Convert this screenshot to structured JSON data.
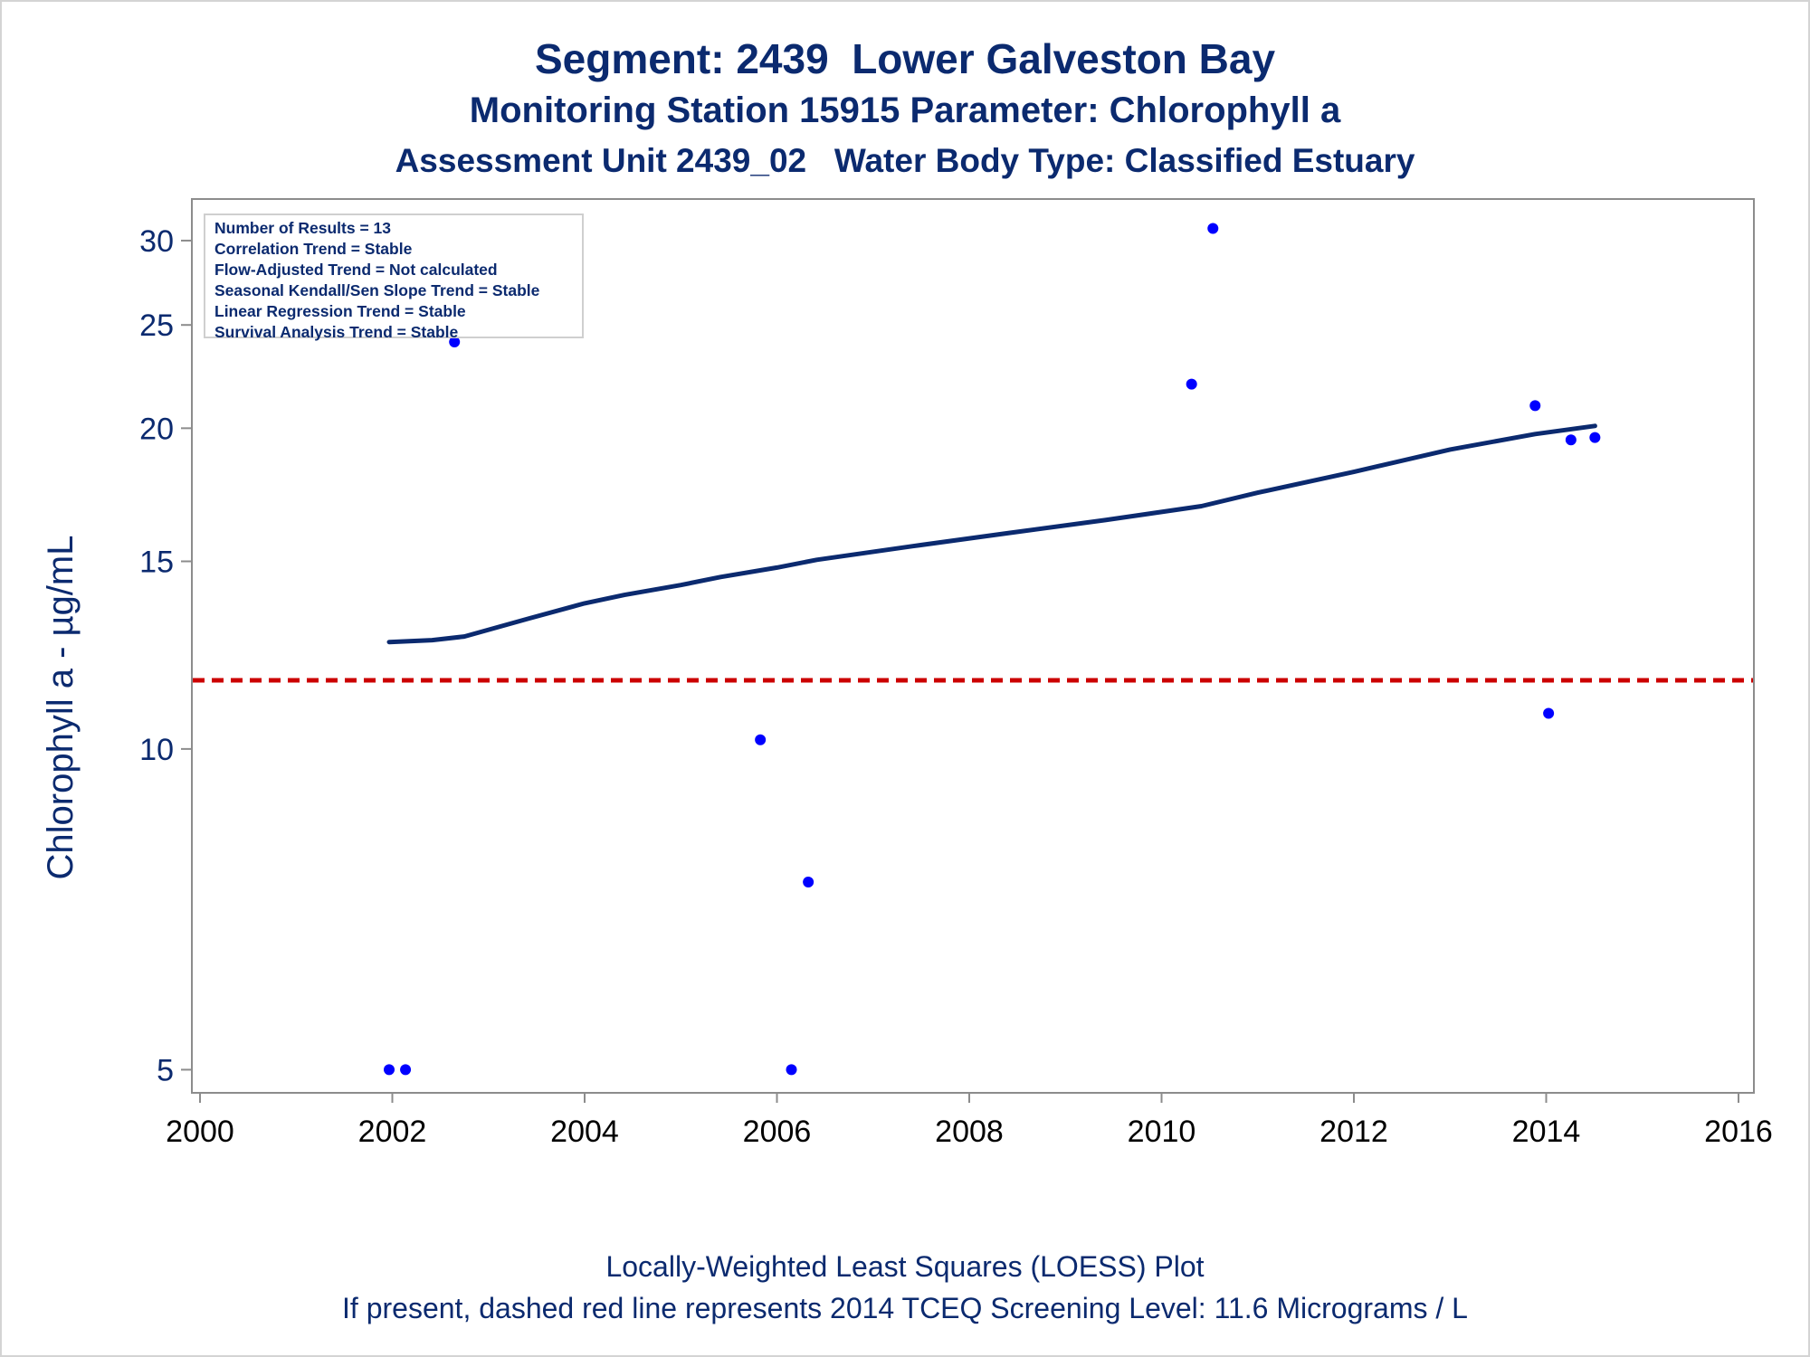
{
  "titles": {
    "line1": "Segment: 2439  Lower Galveston Bay",
    "line2": "Monitoring Station 15915 Parameter: Chlorophyll a",
    "line3": "Assessment Unit 2439_02   Water Body Type: Classified Estuary"
  },
  "footnotes": {
    "line1": "Locally-Weighted Least Squares (LOESS) Plot",
    "line2": "If present, dashed red line represents 2014 TCEQ Screening Level: 11.6 Micrograms / L"
  },
  "stats_box": {
    "lines": [
      "Number of Results = 13",
      "Correlation Trend = Stable",
      "Flow-Adjusted Trend = Not calculated",
      "Seasonal Kendall/Sen Slope Trend = Stable",
      "Linear Regression Trend = Stable",
      "Survival Analysis Trend = Stable"
    ]
  },
  "colors": {
    "text": "#0b2a6f",
    "points": "#0000ff",
    "loess": "#0b2a6f",
    "screening": "#cc0000",
    "axis": "#8c8c8c"
  },
  "chart_data": {
    "type": "scatter",
    "xlabel": "",
    "ylabel": "Chlorophyll a -  µg/mL",
    "x_type": "date",
    "y_scale": "log",
    "xlim": [
      2000,
      2016
    ],
    "ylim": [
      4.85,
      31.5
    ],
    "x_ticks": [
      2000,
      2002,
      2004,
      2006,
      2008,
      2010,
      2012,
      2014,
      2016
    ],
    "y_ticks": [
      5,
      10,
      15,
      20,
      25,
      30
    ],
    "grid": false,
    "series": [
      {
        "kind": "points",
        "x": [
          "2001-12-20",
          "2002-02-20",
          "2002-05-10",
          "2002-08-25",
          "2005-10-30",
          "2006-02-25",
          "2006-04-30",
          "2010-04-25",
          "2010-07-15",
          "2013-11-20",
          "2014-01-10",
          "2014-04-05",
          "2014-07-05"
        ],
        "y": [
          5.0,
          5.0,
          26.0,
          24.1,
          10.2,
          5.0,
          7.5,
          22.0,
          30.8,
          21.0,
          10.8,
          19.5,
          19.6
        ]
      },
      {
        "kind": "loess",
        "x": [
          "2001-12-20",
          "2002-06-01",
          "2002-10-01",
          "2003-06-01",
          "2004-01-01",
          "2004-06-01",
          "2005-01-01",
          "2005-06-01",
          "2006-01-01",
          "2006-06-01",
          "2007-06-01",
          "2008-06-01",
          "2009-06-01",
          "2010-06-01",
          "2011-01-01",
          "2012-01-01",
          "2013-01-01",
          "2013-11-20",
          "2014-07-05"
        ],
        "y": [
          12.6,
          12.65,
          12.75,
          13.25,
          13.7,
          13.95,
          14.25,
          14.5,
          14.8,
          15.05,
          15.5,
          15.95,
          16.4,
          16.9,
          17.4,
          18.2,
          19.1,
          19.75,
          20.1
        ]
      }
    ],
    "reference_line": {
      "y": 11.6,
      "style": "dashed"
    }
  }
}
